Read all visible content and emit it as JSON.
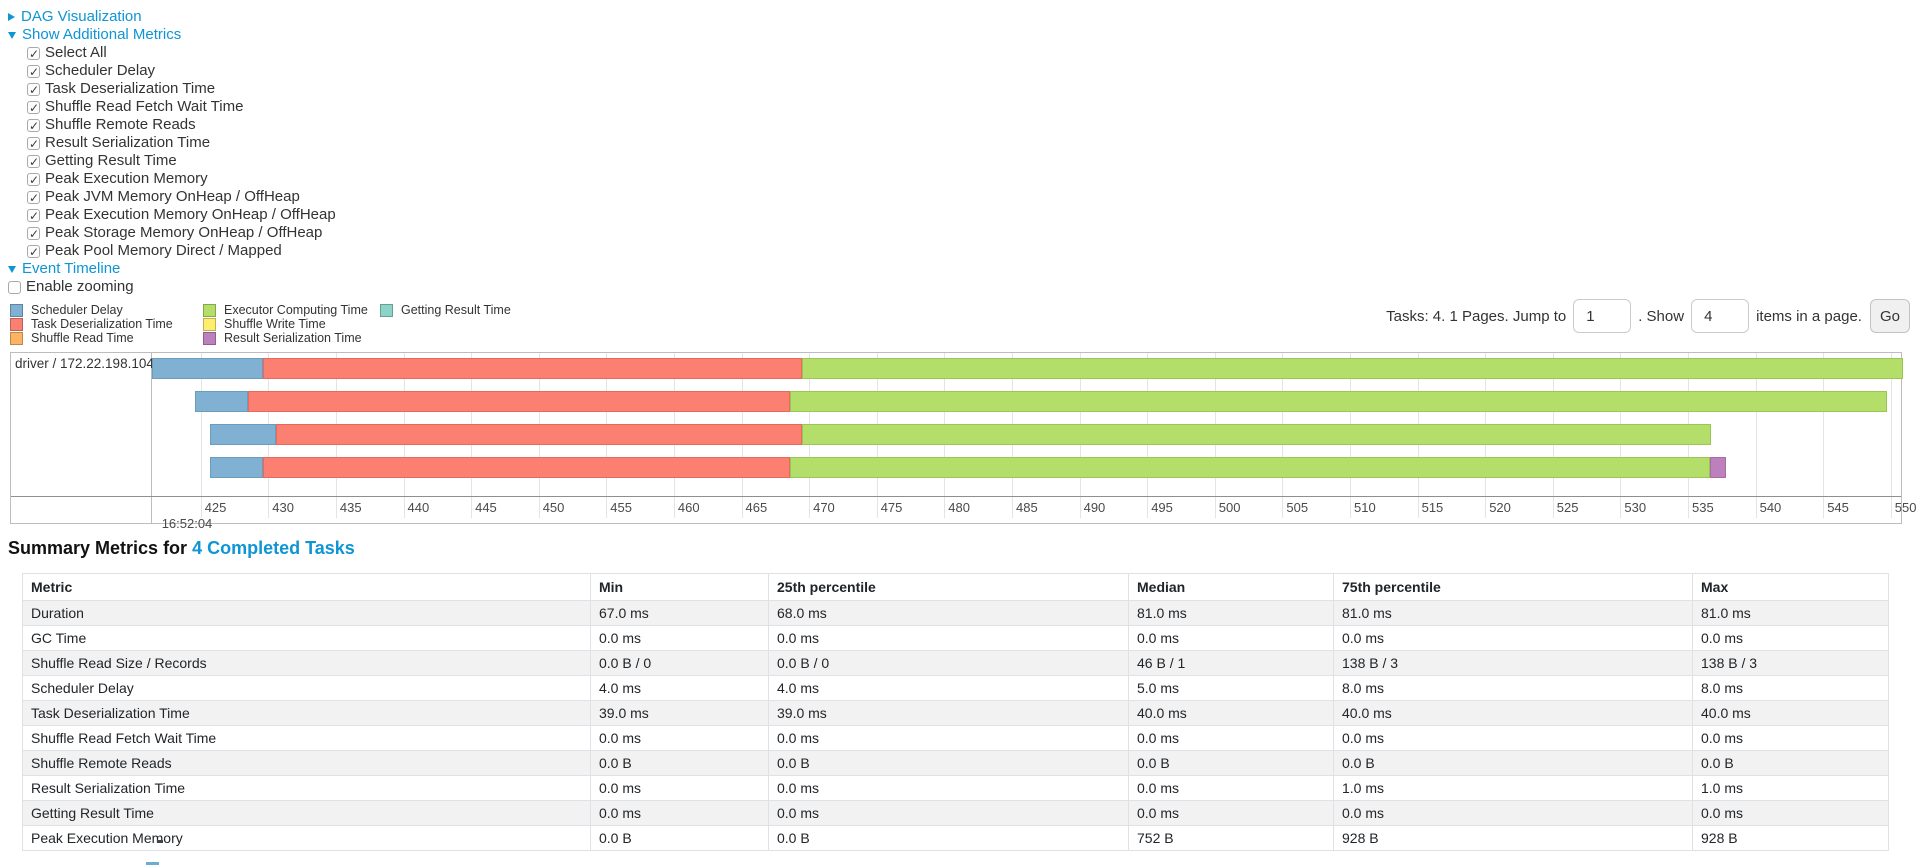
{
  "controls": {
    "dag": {
      "label": "DAG Visualization"
    },
    "metrics": {
      "label": "Show Additional Metrics",
      "items": [
        "Select All",
        "Scheduler Delay",
        "Task Deserialization Time",
        "Shuffle Read Fetch Wait Time",
        "Shuffle Remote Reads",
        "Result Serialization Time",
        "Getting Result Time",
        "Peak Execution Memory",
        "Peak JVM Memory OnHeap / OffHeap",
        "Peak Execution Memory OnHeap / OffHeap",
        "Peak Storage Memory OnHeap / OffHeap",
        "Peak Pool Memory Direct / Mapped"
      ],
      "all_checked": true
    },
    "event_timeline": {
      "label": "Event Timeline"
    },
    "enable_zooming": {
      "label": "Enable zooming",
      "checked": false
    }
  },
  "legend": {
    "columns": [
      [
        {
          "series": "scheduler_delay",
          "label": "Scheduler Delay"
        },
        {
          "series": "task_deserialization",
          "label": "Task Deserialization Time"
        },
        {
          "series": "shuffle_read",
          "label": "Shuffle Read Time"
        }
      ],
      [
        {
          "series": "executor_computing",
          "label": "Executor Computing Time"
        },
        {
          "series": "shuffle_write",
          "label": "Shuffle Write Time"
        },
        {
          "series": "result_serialization",
          "label": "Result Serialization Time"
        }
      ],
      [
        {
          "series": "getting_result",
          "label": "Getting Result Time"
        }
      ]
    ]
  },
  "pagination": {
    "prefix": "Tasks: 4. 1 Pages. Jump to",
    "jump_value": "1",
    "mid": ". Show",
    "show_value": "4",
    "suffix": "items in a page.",
    "go_label": "Go"
  },
  "chart_data": {
    "type": "timeline",
    "executor_label": "driver / 172.22.198.104",
    "axis": {
      "min": 421.4,
      "max": 550.9,
      "ticks": [
        425,
        430,
        435,
        440,
        445,
        450,
        455,
        460,
        465,
        470,
        475,
        480,
        485,
        490,
        495,
        500,
        505,
        510,
        515,
        520,
        525,
        530,
        535,
        540,
        545,
        550
      ],
      "first_tick_sublabel": "16:52:04"
    },
    "colors": {
      "scheduler_delay": "#80B1D3",
      "task_deserialization": "#FB8072",
      "shuffle_read": "#FDB462",
      "executor_computing": "#B3DE69",
      "shuffle_write": "#FFED6F",
      "result_serialization": "#BC80BD",
      "getting_result": "#8DD3C7"
    },
    "border_colors": {
      "scheduler_delay": "#6A9CBE",
      "task_deserialization": "#E56A5D",
      "shuffle_read": "#E89F4D",
      "executor_computing": "#9BC655",
      "shuffle_write": "#E6D45A",
      "result_serialization": "#A76BA8",
      "getting_result": "#79BDB1"
    },
    "tasks": [
      {
        "segments": [
          {
            "type": "scheduler_delay",
            "start": 421.4,
            "end": 429.6
          },
          {
            "type": "task_deserialization",
            "start": 429.6,
            "end": 469.5
          },
          {
            "type": "executor_computing",
            "start": 469.5,
            "end": 550.9
          }
        ]
      },
      {
        "segments": [
          {
            "type": "scheduler_delay",
            "start": 424.6,
            "end": 428.5
          },
          {
            "type": "task_deserialization",
            "start": 428.5,
            "end": 468.6
          },
          {
            "type": "executor_computing",
            "start": 468.6,
            "end": 549.7
          }
        ]
      },
      {
        "segments": [
          {
            "type": "scheduler_delay",
            "start": 425.7,
            "end": 430.6
          },
          {
            "type": "task_deserialization",
            "start": 430.6,
            "end": 469.5
          },
          {
            "type": "executor_computing",
            "start": 469.5,
            "end": 536.7
          }
        ]
      },
      {
        "segments": [
          {
            "type": "scheduler_delay",
            "start": 425.7,
            "end": 429.6
          },
          {
            "type": "task_deserialization",
            "start": 429.6,
            "end": 468.6
          },
          {
            "type": "executor_computing",
            "start": 468.6,
            "end": 536.6
          },
          {
            "type": "result_serialization",
            "start": 536.6,
            "end": 537.8
          }
        ]
      }
    ]
  },
  "summary": {
    "title_prefix": "Summary Metrics for",
    "title_link": "4 Completed Tasks",
    "columns": [
      "Metric",
      "Min",
      "25th percentile",
      "Median",
      "75th percentile",
      "Max"
    ],
    "rows": [
      [
        "Duration",
        "67.0 ms",
        "68.0 ms",
        "81.0 ms",
        "81.0 ms",
        "81.0 ms"
      ],
      [
        "GC Time",
        "0.0 ms",
        "0.0 ms",
        "0.0 ms",
        "0.0 ms",
        "0.0 ms"
      ],
      [
        "Shuffle Read Size / Records",
        "0.0 B / 0",
        "0.0 B / 0",
        "46 B / 1",
        "138 B / 3",
        "138 B / 3"
      ],
      [
        "Scheduler Delay",
        "4.0 ms",
        "4.0 ms",
        "5.0 ms",
        "8.0 ms",
        "8.0 ms"
      ],
      [
        "Task Deserialization Time",
        "39.0 ms",
        "39.0 ms",
        "40.0 ms",
        "40.0 ms",
        "40.0 ms"
      ],
      [
        "Shuffle Read Fetch Wait Time",
        "0.0 ms",
        "0.0 ms",
        "0.0 ms",
        "0.0 ms",
        "0.0 ms"
      ],
      [
        "Shuffle Remote Reads",
        "0.0 B",
        "0.0 B",
        "0.0 B",
        "0.0 B",
        "0.0 B"
      ],
      [
        "Result Serialization Time",
        "0.0 ms",
        "0.0 ms",
        "0.0 ms",
        "1.0 ms",
        "1.0 ms"
      ],
      [
        "Getting Result Time",
        "0.0 ms",
        "0.0 ms",
        "0.0 ms",
        "0.0 ms",
        "0.0 ms"
      ],
      [
        "Peak Execution Memory",
        "0.0 B",
        "0.0 B",
        "752 B",
        "928 B",
        "928 B"
      ]
    ]
  }
}
